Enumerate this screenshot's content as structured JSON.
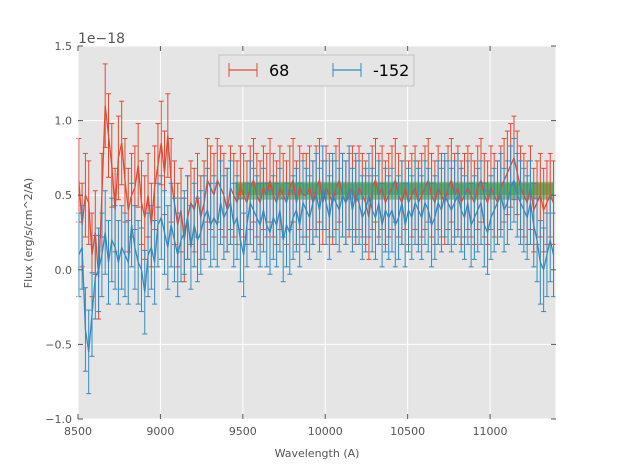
{
  "chart_data": {
    "type": "line",
    "title": "",
    "xlabel": "Wavelength (A)",
    "ylabel": "Flux (erg/s/cm^2/A)",
    "offset_label": "1e−18",
    "xlim": [
      8500,
      11400
    ],
    "ylim": [
      -1.0,
      1.5
    ],
    "x_ticks": [
      8500,
      9000,
      9500,
      10000,
      10500,
      11000
    ],
    "x_tick_labels": [
      "8500",
      "9000",
      "9500",
      "10000",
      "10500",
      "11000"
    ],
    "y_ticks": [
      -1.0,
      -0.5,
      0.0,
      0.5,
      1.0,
      1.5
    ],
    "y_tick_labels": [
      "−1.0",
      "−0.5",
      "0.0",
      "0.5",
      "1.0",
      "1.5"
    ],
    "grid": true,
    "legend_position": "top-center",
    "x": [
      8505,
      8525,
      8545,
      8565,
      8585,
      8605,
      8625,
      8645,
      8665,
      8685,
      8705,
      8725,
      8745,
      8765,
      8785,
      8805,
      8825,
      8845,
      8865,
      8885,
      8905,
      8925,
      8945,
      8965,
      8985,
      9005,
      9025,
      9045,
      9065,
      9085,
      9105,
      9125,
      9145,
      9165,
      9185,
      9205,
      9225,
      9245,
      9265,
      9285,
      9305,
      9325,
      9345,
      9365,
      9385,
      9405,
      9425,
      9445,
      9465,
      9485,
      9505,
      9525,
      9545,
      9565,
      9585,
      9605,
      9625,
      9645,
      9665,
      9685,
      9705,
      9725,
      9745,
      9765,
      9785,
      9805,
      9825,
      9845,
      9865,
      9885,
      9905,
      9925,
      9945,
      9965,
      9985,
      10005,
      10025,
      10045,
      10065,
      10085,
      10105,
      10125,
      10145,
      10165,
      10185,
      10205,
      10225,
      10245,
      10265,
      10285,
      10305,
      10325,
      10345,
      10365,
      10385,
      10405,
      10425,
      10445,
      10465,
      10485,
      10505,
      10525,
      10545,
      10565,
      10585,
      10605,
      10625,
      10645,
      10665,
      10685,
      10705,
      10725,
      10745,
      10765,
      10785,
      10805,
      10825,
      10845,
      10865,
      10885,
      10905,
      10925,
      10945,
      10965,
      10985,
      11005,
      11025,
      11045,
      11065,
      11085,
      11105,
      11125,
      11145,
      11165,
      11185,
      11205,
      11225,
      11245,
      11265,
      11285,
      11305,
      11325,
      11345,
      11365,
      11385
    ],
    "series": [
      {
        "name": "68",
        "color": "#E24A33",
        "y": [
          0.6,
          0.3,
          0.5,
          0.45,
          0.1,
          0.25,
          -0.05,
          0.5,
          1.1,
          0.9,
          0.7,
          0.4,
          0.75,
          0.85,
          0.6,
          0.4,
          0.5,
          0.55,
          0.7,
          0.45,
          0.35,
          0.5,
          0.3,
          0.55,
          0.7,
          0.85,
          0.65,
          0.9,
          0.6,
          0.45,
          0.3,
          0.4,
          0.2,
          0.35,
          0.45,
          0.4,
          0.5,
          0.35,
          0.45,
          0.6,
          0.55,
          0.5,
          0.6,
          0.55,
          0.5,
          0.4,
          0.55,
          0.5,
          0.45,
          0.55,
          0.5,
          0.45,
          0.55,
          0.6,
          0.5,
          0.45,
          0.55,
          0.5,
          0.6,
          0.5,
          0.45,
          0.55,
          0.5,
          0.45,
          0.55,
          0.6,
          0.45,
          0.55,
          0.5,
          0.5,
          0.55,
          0.45,
          0.55,
          0.6,
          0.45,
          0.55,
          0.5,
          0.45,
          0.55,
          0.6,
          0.5,
          0.45,
          0.5,
          0.55,
          0.45,
          0.55,
          0.5,
          0.45,
          0.35,
          0.55,
          0.6,
          0.5,
          0.55,
          0.45,
          0.5,
          0.55,
          0.6,
          0.5,
          0.45,
          0.55,
          0.45,
          0.5,
          0.55,
          0.45,
          0.5,
          0.55,
          0.6,
          0.5,
          0.45,
          0.55,
          0.5,
          0.45,
          0.55,
          0.6,
          0.5,
          0.55,
          0.45,
          0.5,
          0.55,
          0.5,
          0.45,
          0.55,
          0.6,
          0.5,
          0.45,
          0.55,
          0.5,
          0.45,
          0.55,
          0.6,
          0.65,
          0.7,
          0.75,
          0.65,
          0.55,
          0.5,
          0.45,
          0.55,
          0.4,
          0.45,
          0.5,
          0.4,
          0.45,
          0.5,
          0.45
        ]
      },
      {
        "name": "-152",
        "color": "#348ABD",
        "y": [
          0.1,
          0.15,
          -0.4,
          -0.55,
          -0.3,
          -0.05,
          0.0,
          0.1,
          0.25,
          0.05,
          0.2,
          0.15,
          0.05,
          0.15,
          0.1,
          0.05,
          0.3,
          0.15,
          0.05,
          0.0,
          -0.15,
          0.1,
          0.15,
          0.05,
          0.3,
          0.35,
          0.25,
          0.15,
          0.3,
          0.2,
          0.1,
          0.2,
          0.25,
          0.35,
          0.15,
          0.3,
          0.2,
          0.25,
          0.35,
          0.4,
          0.3,
          0.35,
          0.3,
          0.45,
          0.35,
          0.4,
          0.45,
          0.3,
          0.35,
          0.2,
          0.1,
          0.3,
          0.45,
          0.4,
          0.35,
          0.3,
          0.4,
          0.3,
          0.25,
          0.35,
          0.3,
          0.4,
          0.2,
          0.3,
          0.25,
          0.35,
          0.4,
          0.3,
          0.45,
          0.4,
          0.35,
          0.45,
          0.5,
          0.4,
          0.55,
          0.45,
          0.35,
          0.5,
          0.45,
          0.4,
          0.5,
          0.45,
          0.55,
          0.4,
          0.5,
          0.45,
          0.35,
          0.4,
          0.5,
          0.4,
          0.35,
          0.45,
          0.3,
          0.4,
          0.35,
          0.4,
          0.3,
          0.35,
          0.45,
          0.3,
          0.4,
          0.35,
          0.45,
          0.4,
          0.35,
          0.45,
          0.4,
          0.3,
          0.35,
          0.45,
          0.4,
          0.5,
          0.45,
          0.4,
          0.45,
          0.5,
          0.4,
          0.35,
          0.45,
          0.3,
          0.35,
          0.4,
          0.45,
          0.3,
          0.25,
          0.35,
          0.4,
          0.45,
          0.5,
          0.4,
          0.45,
          0.55,
          0.6,
          0.5,
          0.45,
          0.4,
          0.35,
          0.45,
          0.3,
          0.2,
          0.05,
          0.0,
          0.1,
          0.2,
          0.1
        ]
      }
    ],
    "error": 0.28,
    "bands": [
      {
        "x": [
          9455,
          11385
        ],
        "y": [
          0.5,
          0.59
        ],
        "color": "#3d9b35"
      },
      {
        "x": [
          9455,
          11385
        ],
        "y": [
          0.47,
          0.58
        ],
        "color": "#3d9b35"
      }
    ]
  }
}
